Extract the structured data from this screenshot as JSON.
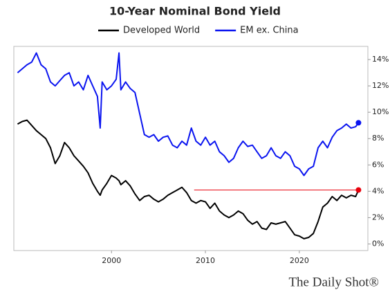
{
  "chart_data": {
    "type": "line",
    "title": "10-Year Nominal Bond Yield",
    "x": [
      1990,
      1990.5,
      1991,
      1991.5,
      1992,
      1992.5,
      1993,
      1993.5,
      1994,
      1994.5,
      1995,
      1995.5,
      1996,
      1996.5,
      1997,
      1997.5,
      1998,
      1998.5,
      1998.8,
      1999,
      1999.5,
      2000,
      2000.5,
      2000.8,
      2001,
      2001.5,
      2002,
      2002.5,
      2003,
      2003.5,
      2004,
      2004.5,
      2005,
      2005.5,
      2006,
      2006.5,
      2007,
      2007.5,
      2008,
      2008.5,
      2009,
      2009.5,
      2010,
      2010.5,
      2011,
      2011.5,
      2012,
      2012.5,
      2013,
      2013.5,
      2014,
      2014.5,
      2015,
      2015.5,
      2016,
      2016.5,
      2017,
      2017.5,
      2018,
      2018.5,
      2019,
      2019.5,
      2020,
      2020.5,
      2021,
      2021.5,
      2022,
      2022.5,
      2023,
      2023.5,
      2024,
      2024.5,
      2025,
      2025.5,
      2026,
      2026.3
    ],
    "series": [
      {
        "name": "Developed World",
        "color": "#000000",
        "end_marker_color": "#e8000b",
        "values": [
          9.1,
          9.3,
          9.4,
          9.0,
          8.6,
          8.3,
          8.0,
          7.3,
          6.1,
          6.7,
          7.7,
          7.3,
          6.7,
          6.3,
          5.9,
          5.4,
          4.6,
          4.0,
          3.7,
          4.1,
          4.6,
          5.2,
          5.0,
          4.8,
          4.5,
          4.8,
          4.4,
          3.8,
          3.3,
          3.6,
          3.7,
          3.4,
          3.2,
          3.4,
          3.7,
          3.9,
          4.1,
          4.3,
          3.9,
          3.3,
          3.1,
          3.3,
          3.2,
          2.7,
          3.1,
          2.5,
          2.2,
          2.0,
          2.2,
          2.5,
          2.3,
          1.8,
          1.5,
          1.7,
          1.2,
          1.1,
          1.6,
          1.5,
          1.6,
          1.7,
          1.2,
          0.7,
          0.6,
          0.4,
          0.5,
          0.8,
          1.7,
          2.8,
          3.1,
          3.6,
          3.3,
          3.7,
          3.5,
          3.7,
          3.6,
          4.1
        ]
      },
      {
        "name": "EM ex. China",
        "color": "#0a14f0",
        "end_marker_color": "#0a14f0",
        "values": [
          13.0,
          13.3,
          13.6,
          13.8,
          14.5,
          13.6,
          13.3,
          12.3,
          12.0,
          12.4,
          12.8,
          13.0,
          12.0,
          12.3,
          11.7,
          12.8,
          12.0,
          11.2,
          8.8,
          12.3,
          11.7,
          12.0,
          12.5,
          14.5,
          11.7,
          12.3,
          11.8,
          11.5,
          9.9,
          8.3,
          8.1,
          8.3,
          7.8,
          8.1,
          8.2,
          7.5,
          7.3,
          7.8,
          7.5,
          8.8,
          7.8,
          7.5,
          8.1,
          7.5,
          7.8,
          7.0,
          6.7,
          6.2,
          6.5,
          7.3,
          7.8,
          7.4,
          7.5,
          7.0,
          6.5,
          6.7,
          7.3,
          6.7,
          6.5,
          7.0,
          6.7,
          5.9,
          5.7,
          5.2,
          5.7,
          5.9,
          7.3,
          7.8,
          7.3,
          8.1,
          8.6,
          8.8,
          9.1,
          8.8,
          8.9,
          9.2
        ]
      }
    ],
    "reference_line": {
      "value": 4.1,
      "x": [
        2008.8,
        2026.3
      ],
      "color": "#e8000b"
    },
    "xlim": [
      1989.6,
      2027.3
    ],
    "xticks": [
      2000,
      2010,
      2020
    ],
    "ylim": [
      -0.5,
      15
    ],
    "yticks": [
      {
        "value": 0,
        "label": "0%"
      },
      {
        "value": 2,
        "label": "2%"
      },
      {
        "value": 4,
        "label": "4%"
      },
      {
        "value": 6,
        "label": "6%"
      },
      {
        "value": 8,
        "label": "8%"
      },
      {
        "value": 10,
        "label": "10%"
      },
      {
        "value": 12,
        "label": "12%"
      },
      {
        "value": 14,
        "label": "14%"
      }
    ],
    "y_axis_side": "right",
    "source": "The Daily Shot®"
  }
}
